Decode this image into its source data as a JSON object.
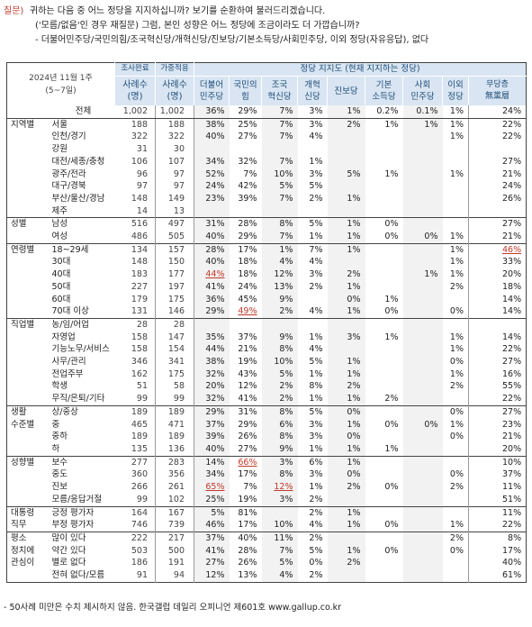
{
  "question": {
    "tag": "질문)",
    "lines": [
      "귀하는 다음 중 어느 정당을 지지하십니까? 보기를 순환하여 불러드리겠습니다.",
      "('모름/없음'인 경우 재질문) 그럼, 본인 성향은 어느 정당에 조금이라도 더 가깝습니까?",
      "- 더불어민주당/국민의힘/조국혁신당/개혁신당/진보당/기본소득당/사회민주당, 이외 정당(자유응답), 없다"
    ]
  },
  "header": {
    "date": "2024년 11월 1주",
    "date_sub": "(5~7일)",
    "sample_top": "조사완료",
    "sample_bottom": "사례수\n(명)",
    "weight_top": "가중적용",
    "weight_bottom": "사례수\n(명)",
    "party_title": "정당 지지도 (현재 지지하는 정당)",
    "parties": [
      "더불어\n민주당",
      "국민의\n힘",
      "조국\n혁신당",
      "개혁\n신당",
      "진보당",
      "기본\n소득당",
      "사회\n민주당",
      "이외\n정당",
      "무당층\n無黨層"
    ]
  },
  "rows": [
    {
      "g": "",
      "l": "전체",
      "v": [
        "1,002",
        "1,002",
        "36%",
        "29%",
        "7%",
        "3%",
        "1%",
        "0.2%",
        "0.1%",
        "1%",
        "24%"
      ],
      "total": true
    },
    {
      "g": "지역별",
      "l": "서울",
      "v": [
        "188",
        "188",
        "38%",
        "25%",
        "7%",
        "3%",
        "2%",
        "1%",
        "1%",
        "1%",
        "22%"
      ],
      "sep": true
    },
    {
      "g": "",
      "l": "인천/경기",
      "v": [
        "322",
        "322",
        "40%",
        "27%",
        "7%",
        "4%",
        "",
        "",
        "",
        "1%",
        "22%"
      ]
    },
    {
      "g": "",
      "l": "강원",
      "v": [
        "31",
        "30",
        "",
        "",
        "",
        "",
        "",
        "",
        "",
        "",
        ""
      ]
    },
    {
      "g": "",
      "l": "대전/세종/충청",
      "v": [
        "106",
        "107",
        "34%",
        "32%",
        "7%",
        "1%",
        "",
        "",
        "",
        "",
        "27%"
      ]
    },
    {
      "g": "",
      "l": "광주/전라",
      "v": [
        "96",
        "97",
        "52%",
        "7%",
        "10%",
        "3%",
        "5%",
        "1%",
        "",
        "1%",
        "21%"
      ]
    },
    {
      "g": "",
      "l": "대구/경북",
      "v": [
        "97",
        "97",
        "24%",
        "42%",
        "5%",
        "5%",
        "",
        "",
        "",
        "",
        "24%"
      ]
    },
    {
      "g": "",
      "l": "부산/울산/경남",
      "v": [
        "148",
        "149",
        "23%",
        "39%",
        "7%",
        "2%",
        "1%",
        "",
        "",
        "",
        "26%"
      ]
    },
    {
      "g": "",
      "l": "제주",
      "v": [
        "14",
        "13",
        "",
        "",
        "",
        "",
        "",
        "",
        "",
        "",
        ""
      ]
    },
    {
      "g": "성별",
      "l": "남성",
      "v": [
        "516",
        "497",
        "31%",
        "28%",
        "8%",
        "5%",
        "1%",
        "0%",
        "",
        "",
        "27%"
      ],
      "sep": true
    },
    {
      "g": "",
      "l": "여성",
      "v": [
        "486",
        "505",
        "40%",
        "29%",
        "7%",
        "1%",
        "1%",
        "0%",
        "0%",
        "1%",
        "21%"
      ]
    },
    {
      "g": "연령별",
      "l": "18~29세",
      "v": [
        "134",
        "157",
        "28%",
        "17%",
        "1%",
        "7%",
        "1%",
        "",
        "",
        "1%",
        "46%"
      ],
      "hl": [
        10
      ],
      "sep": true
    },
    {
      "g": "",
      "l": "30대",
      "v": [
        "148",
        "150",
        "40%",
        "18%",
        "4%",
        "4%",
        "",
        "",
        "",
        "1%",
        "33%"
      ]
    },
    {
      "g": "",
      "l": "40대",
      "v": [
        "183",
        "177",
        "44%",
        "18%",
        "12%",
        "3%",
        "2%",
        "",
        "1%",
        "1%",
        "20%"
      ],
      "hl": [
        2
      ]
    },
    {
      "g": "",
      "l": "50대",
      "v": [
        "227",
        "197",
        "41%",
        "24%",
        "13%",
        "2%",
        "1%",
        "",
        "",
        "2%",
        "18%"
      ]
    },
    {
      "g": "",
      "l": "60대",
      "v": [
        "179",
        "175",
        "36%",
        "45%",
        "9%",
        "",
        "0%",
        "1%",
        "",
        "",
        "14%"
      ]
    },
    {
      "g": "",
      "l": "70대 이상",
      "v": [
        "131",
        "146",
        "29%",
        "49%",
        "2%",
        "4%",
        "1%",
        "0%",
        "",
        "0%",
        "14%"
      ],
      "hl": [
        3
      ]
    },
    {
      "g": "직업별",
      "l": "농/임/어업",
      "v": [
        "28",
        "28",
        "",
        "",
        "",
        "",
        "",
        "",
        "",
        "",
        ""
      ],
      "sep": true
    },
    {
      "g": "",
      "l": "자영업",
      "v": [
        "158",
        "147",
        "35%",
        "37%",
        "9%",
        "1%",
        "3%",
        "1%",
        "",
        "1%",
        "14%"
      ]
    },
    {
      "g": "",
      "l": "기능노무/서비스",
      "v": [
        "158",
        "154",
        "44%",
        "21%",
        "8%",
        "4%",
        "",
        "",
        "",
        "1%",
        "22%"
      ]
    },
    {
      "g": "",
      "l": "사무/관리",
      "v": [
        "346",
        "341",
        "38%",
        "19%",
        "10%",
        "5%",
        "1%",
        "",
        "",
        "0%",
        "27%"
      ]
    },
    {
      "g": "",
      "l": "전업주부",
      "v": [
        "162",
        "175",
        "32%",
        "43%",
        "5%",
        "1%",
        "1%",
        "",
        "",
        "1%",
        "16%"
      ]
    },
    {
      "g": "",
      "l": "학생",
      "v": [
        "51",
        "58",
        "20%",
        "12%",
        "2%",
        "8%",
        "2%",
        "",
        "",
        "2%",
        "55%"
      ]
    },
    {
      "g": "",
      "l": "무직/은퇴/기타",
      "v": [
        "99",
        "99",
        "32%",
        "41%",
        "2%",
        "1%",
        "1%",
        "2%",
        "",
        "",
        "22%"
      ]
    },
    {
      "g": "생활",
      "l": "상/중상",
      "v": [
        "189",
        "189",
        "29%",
        "31%",
        "8%",
        "5%",
        "0%",
        "",
        "",
        "0%",
        "27%"
      ],
      "sep": true
    },
    {
      "g": "수준별",
      "l": "중",
      "v": [
        "465",
        "471",
        "37%",
        "29%",
        "6%",
        "3%",
        "1%",
        "0%",
        "0%",
        "1%",
        "23%"
      ]
    },
    {
      "g": "",
      "l": "중하",
      "v": [
        "189",
        "189",
        "39%",
        "26%",
        "8%",
        "3%",
        "0%",
        "",
        "",
        "0%",
        "21%"
      ]
    },
    {
      "g": "",
      "l": "하",
      "v": [
        "135",
        "136",
        "40%",
        "27%",
        "9%",
        "1%",
        "1%",
        "1%",
        "",
        "",
        "20%"
      ]
    },
    {
      "g": "성향별",
      "l": "보수",
      "v": [
        "277",
        "283",
        "14%",
        "66%",
        "3%",
        "6%",
        "1%",
        "",
        "",
        "",
        "10%"
      ],
      "hl": [
        3
      ],
      "sep": true
    },
    {
      "g": "",
      "l": "중도",
      "v": [
        "360",
        "356",
        "34%",
        "17%",
        "8%",
        "3%",
        "0%",
        "",
        "",
        "0%",
        "37%"
      ]
    },
    {
      "g": "",
      "l": "진보",
      "v": [
        "266",
        "261",
        "65%",
        "7%",
        "12%",
        "1%",
        "2%",
        "0%",
        "",
        "2%",
        "11%"
      ],
      "hl": [
        2,
        4
      ]
    },
    {
      "g": "",
      "l": "모름/응답거절",
      "v": [
        "99",
        "102",
        "25%",
        "19%",
        "3%",
        "2%",
        "",
        "",
        "",
        "",
        "51%"
      ]
    },
    {
      "g": "대통령",
      "l": "긍정 평가자",
      "v": [
        "164",
        "167",
        "5%",
        "81%",
        "",
        "2%",
        "1%",
        "",
        "",
        "",
        "11%"
      ],
      "sep": true
    },
    {
      "g": "직무",
      "l": "부정 평가자",
      "v": [
        "746",
        "739",
        "46%",
        "17%",
        "10%",
        "4%",
        "1%",
        "0%",
        "",
        "1%",
        "22%"
      ]
    },
    {
      "g": "평소",
      "l": "많이 있다",
      "v": [
        "222",
        "217",
        "37%",
        "40%",
        "11%",
        "2%",
        "",
        "",
        "",
        "2%",
        "8%"
      ],
      "sep": true
    },
    {
      "g": "정치에",
      "l": "약간 있다",
      "v": [
        "503",
        "500",
        "41%",
        "28%",
        "7%",
        "5%",
        "1%",
        "0%",
        "",
        "0%",
        "17%"
      ]
    },
    {
      "g": "관심이",
      "l": "별로 없다",
      "v": [
        "186",
        "191",
        "27%",
        "26%",
        "5%",
        "0%",
        "2%",
        "",
        "",
        "",
        "40%"
      ]
    },
    {
      "g": "",
      "l": "전혀 없다/모름",
      "v": [
        "91",
        "94",
        "12%",
        "13%",
        "4%",
        "2%",
        "",
        "",
        "",
        "",
        "61%"
      ]
    }
  ],
  "footer": "- 50사례 미만은 수치 제시하지 않음. 한국갤럽 데일리 오피니언 제601호   www.gallup.co.kr"
}
